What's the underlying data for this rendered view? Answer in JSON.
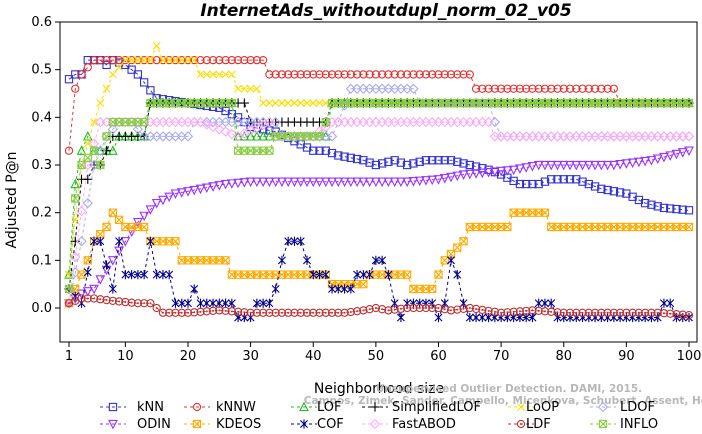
{
  "chart_data": {
    "type": "line",
    "title": "InternetAds_withoutdupl_norm_02_v05",
    "xlabel": "Neighborhood size",
    "ylabel": "Adjusted P@n",
    "xlim": [
      1,
      100
    ],
    "ylim": [
      -0.03,
      0.6
    ],
    "x_ticks": [
      1,
      10,
      20,
      30,
      40,
      50,
      60,
      70,
      80,
      90,
      100
    ],
    "y_ticks": [
      0.0,
      0.1,
      0.2,
      0.3,
      0.4,
      0.5,
      0.6
    ],
    "x_tick_labels": [
      "1",
      "10",
      "20",
      "30",
      "40",
      "50",
      "60",
      "70",
      "80",
      "90",
      "100"
    ],
    "y_tick_labels": [
      "0.0",
      "0.1",
      "0.2",
      "0.3",
      "0.4",
      "0.5",
      "0.6"
    ],
    "grid": false,
    "legend_position": "bottom",
    "series": [
      {
        "name": "kNN",
        "color": "#3333cc",
        "marker": "square",
        "dash": "3,3",
        "points": [
          [
            1,
            0.48
          ],
          [
            2,
            0.49
          ],
          [
            3,
            0.49
          ],
          [
            4,
            0.52
          ],
          [
            6,
            0.52
          ],
          [
            7,
            0.51
          ],
          [
            8,
            0.52
          ],
          [
            10,
            0.51
          ],
          [
            12,
            0.49
          ],
          [
            15,
            0.44
          ],
          [
            20,
            0.43
          ],
          [
            25,
            0.42
          ],
          [
            28,
            0.4
          ],
          [
            30,
            0.38
          ],
          [
            34,
            0.37
          ],
          [
            37,
            0.35
          ],
          [
            40,
            0.33
          ],
          [
            42,
            0.33
          ],
          [
            44,
            0.32
          ],
          [
            48,
            0.31
          ],
          [
            50,
            0.3
          ],
          [
            53,
            0.31
          ],
          [
            55,
            0.3
          ],
          [
            58,
            0.31
          ],
          [
            62,
            0.31
          ],
          [
            65,
            0.3
          ],
          [
            68,
            0.29
          ],
          [
            70,
            0.28
          ],
          [
            73,
            0.26
          ],
          [
            76,
            0.26
          ],
          [
            78,
            0.27
          ],
          [
            82,
            0.27
          ],
          [
            84,
            0.26
          ],
          [
            86,
            0.25
          ],
          [
            90,
            0.24
          ],
          [
            93,
            0.22
          ],
          [
            96,
            0.21
          ],
          [
            100,
            0.205
          ]
        ]
      },
      {
        "name": "kNNW",
        "color": "#dd3333",
        "marker": "circle",
        "dash": "3,3",
        "points": [
          [
            1,
            0.33
          ],
          [
            2,
            0.46
          ],
          [
            3,
            0.49
          ],
          [
            5,
            0.52
          ],
          [
            10,
            0.52
          ],
          [
            20,
            0.52
          ],
          [
            30,
            0.52
          ],
          [
            32,
            0.52
          ],
          [
            33,
            0.49
          ],
          [
            40,
            0.49
          ],
          [
            50,
            0.49
          ],
          [
            60,
            0.49
          ],
          [
            65,
            0.49
          ],
          [
            66,
            0.46
          ],
          [
            80,
            0.46
          ],
          [
            88,
            0.46
          ],
          [
            89,
            0.43
          ],
          [
            100,
            0.43
          ]
        ]
      },
      {
        "name": "LOF",
        "color": "#22bb22",
        "marker": "triangle",
        "dash": "3,3",
        "points": [
          [
            1,
            0.07
          ],
          [
            2,
            0.26
          ],
          [
            3,
            0.33
          ],
          [
            4,
            0.36
          ],
          [
            5,
            0.33
          ],
          [
            8,
            0.33
          ],
          [
            9,
            0.36
          ],
          [
            13,
            0.36
          ],
          [
            14,
            0.43
          ],
          [
            27,
            0.43
          ],
          [
            28,
            0.36
          ],
          [
            42,
            0.36
          ],
          [
            43,
            0.43
          ],
          [
            100,
            0.43
          ]
        ]
      },
      {
        "name": "SimplifiedLOF",
        "color": "#000000",
        "marker": "plus",
        "dash": "3,3",
        "points": [
          [
            1,
            0.04
          ],
          [
            2,
            0.14
          ],
          [
            3,
            0.27
          ],
          [
            4,
            0.27
          ],
          [
            5,
            0.3
          ],
          [
            6,
            0.3
          ],
          [
            8,
            0.36
          ],
          [
            13,
            0.36
          ],
          [
            14,
            0.43
          ],
          [
            29,
            0.43
          ],
          [
            30,
            0.39
          ],
          [
            42,
            0.39
          ],
          [
            43,
            0.43
          ],
          [
            100,
            0.43
          ]
        ]
      },
      {
        "name": "LoOP",
        "color": "#ffdd00",
        "marker": "cross",
        "dash": "3,3",
        "points": [
          [
            1,
            0.07
          ],
          [
            3,
            0.3
          ],
          [
            5,
            0.39
          ],
          [
            6,
            0.43
          ],
          [
            8,
            0.49
          ],
          [
            10,
            0.52
          ],
          [
            14,
            0.52
          ],
          [
            15,
            0.55
          ],
          [
            16,
            0.52
          ],
          [
            21,
            0.52
          ],
          [
            22,
            0.49
          ],
          [
            27,
            0.49
          ],
          [
            28,
            0.46
          ],
          [
            31,
            0.46
          ],
          [
            32,
            0.43
          ],
          [
            100,
            0.43
          ]
        ]
      },
      {
        "name": "LDOF",
        "color": "#aaaaee",
        "marker": "diamond",
        "dash": "3,3",
        "points": [
          [
            1,
            0.01
          ],
          [
            3,
            0.14
          ],
          [
            5,
            0.3
          ],
          [
            7,
            0.36
          ],
          [
            9,
            0.39
          ],
          [
            11,
            0.39
          ],
          [
            13,
            0.36
          ],
          [
            20,
            0.36
          ],
          [
            21,
            0.39
          ],
          [
            34,
            0.39
          ],
          [
            35,
            0.36
          ],
          [
            43,
            0.36
          ],
          [
            44,
            0.39
          ],
          [
            46,
            0.46
          ],
          [
            56,
            0.46
          ],
          [
            57,
            0.43
          ],
          [
            68,
            0.43
          ],
          [
            69,
            0.39
          ],
          [
            70,
            0.36
          ],
          [
            100,
            0.36
          ]
        ]
      },
      {
        "name": "ODIN",
        "color": "#9933ff",
        "marker": "triangle-down",
        "dash": "3,3",
        "points": [
          [
            1,
            0.01
          ],
          [
            3,
            0.03
          ],
          [
            5,
            0.04
          ],
          [
            8,
            0.1
          ],
          [
            10,
            0.14
          ],
          [
            12,
            0.18
          ],
          [
            15,
            0.22
          ],
          [
            18,
            0.24
          ],
          [
            22,
            0.25
          ],
          [
            26,
            0.26
          ],
          [
            30,
            0.265
          ],
          [
            40,
            0.265
          ],
          [
            50,
            0.265
          ],
          [
            55,
            0.265
          ],
          [
            60,
            0.27
          ],
          [
            64,
            0.28
          ],
          [
            68,
            0.285
          ],
          [
            72,
            0.29
          ],
          [
            76,
            0.3
          ],
          [
            88,
            0.3
          ],
          [
            94,
            0.31
          ],
          [
            97,
            0.32
          ],
          [
            100,
            0.33
          ]
        ]
      },
      {
        "name": "KDEOS",
        "color": "#ffaa00",
        "marker": "square-x",
        "dash": "3,3",
        "points": [
          [
            1,
            0.01
          ],
          [
            3,
            0.07
          ],
          [
            4,
            0.1
          ],
          [
            5,
            0.14
          ],
          [
            7,
            0.17
          ],
          [
            8,
            0.2
          ],
          [
            10,
            0.17
          ],
          [
            13,
            0.17
          ],
          [
            14,
            0.14
          ],
          [
            18,
            0.14
          ],
          [
            19,
            0.1
          ],
          [
            26,
            0.1
          ],
          [
            27,
            0.07
          ],
          [
            42,
            0.07
          ],
          [
            43,
            0.05
          ],
          [
            48,
            0.05
          ],
          [
            49,
            0.07
          ],
          [
            55,
            0.07
          ],
          [
            56,
            0.04
          ],
          [
            59,
            0.04
          ],
          [
            60,
            0.07
          ],
          [
            61,
            0.1
          ],
          [
            64,
            0.14
          ],
          [
            65,
            0.17
          ],
          [
            71,
            0.17
          ],
          [
            72,
            0.2
          ],
          [
            77,
            0.2
          ],
          [
            78,
            0.17
          ],
          [
            100,
            0.17
          ]
        ]
      },
      {
        "name": "COF",
        "color": "#000088",
        "marker": "asterisk",
        "dash": "3,3",
        "points": [
          [
            1,
            0.04
          ],
          [
            3,
            0.01
          ],
          [
            5,
            0.14
          ],
          [
            6,
            0.14
          ],
          [
            8,
            0.04
          ],
          [
            9,
            0.14
          ],
          [
            10,
            0.07
          ],
          [
            13,
            0.07
          ],
          [
            14,
            0.14
          ],
          [
            15,
            0.07
          ],
          [
            17,
            0.07
          ],
          [
            18,
            0.01
          ],
          [
            20,
            0.01
          ],
          [
            21,
            0.04
          ],
          [
            22,
            0.01
          ],
          [
            27,
            0.01
          ],
          [
            28,
            -0.02
          ],
          [
            30,
            -0.02
          ],
          [
            31,
            0.01
          ],
          [
            33,
            0.01
          ],
          [
            34,
            0.04
          ],
          [
            35,
            0.1
          ],
          [
            36,
            0.14
          ],
          [
            38,
            0.14
          ],
          [
            39,
            0.1
          ],
          [
            40,
            0.07
          ],
          [
            42,
            0.07
          ],
          [
            43,
            0.04
          ],
          [
            46,
            0.04
          ],
          [
            47,
            0.07
          ],
          [
            49,
            0.07
          ],
          [
            50,
            0.1
          ],
          [
            51,
            0.1
          ],
          [
            52,
            0.07
          ],
          [
            53,
            0.01
          ],
          [
            54,
            -0.02
          ],
          [
            55,
            0.01
          ],
          [
            59,
            0.01
          ],
          [
            60,
            -0.02
          ],
          [
            61,
            0.01
          ],
          [
            62,
            0.1
          ],
          [
            63,
            0.07
          ],
          [
            64,
            0.01
          ],
          [
            65,
            -0.02
          ],
          [
            75,
            -0.02
          ],
          [
            76,
            0.01
          ],
          [
            78,
            0.01
          ],
          [
            79,
            -0.02
          ],
          [
            95,
            -0.02
          ],
          [
            96,
            0.01
          ],
          [
            97,
            0.01
          ],
          [
            98,
            -0.02
          ],
          [
            100,
            -0.02
          ]
        ]
      },
      {
        "name": "FastABOD",
        "color": "#ffaaff",
        "marker": "diamond",
        "dash": "3,3",
        "points": [
          [
            1,
            0.01
          ],
          [
            4,
            0.3
          ],
          [
            6,
            0.39
          ],
          [
            8,
            0.39
          ],
          [
            10,
            0.39
          ],
          [
            12,
            0.39
          ],
          [
            15,
            0.39
          ],
          [
            22,
            0.39
          ],
          [
            28,
            0.36
          ],
          [
            33,
            0.39
          ],
          [
            34,
            0.36
          ],
          [
            40,
            0.36
          ],
          [
            43,
            0.39
          ],
          [
            58,
            0.39
          ],
          [
            68,
            0.39
          ],
          [
            69,
            0.36
          ],
          [
            100,
            0.36
          ]
        ]
      },
      {
        "name": "LDF",
        "color": "#bb3333",
        "marker": "circle-dot",
        "dash": "3,3",
        "points": [
          [
            1,
            0.01
          ],
          [
            3,
            0.02
          ],
          [
            5,
            0.02
          ],
          [
            8,
            0.015
          ],
          [
            12,
            0.01
          ],
          [
            14,
            0.01
          ],
          [
            16,
            -0.01
          ],
          [
            20,
            -0.01
          ],
          [
            25,
            -0.005
          ],
          [
            30,
            -0.01
          ],
          [
            35,
            -0.01
          ],
          [
            40,
            -0.01
          ],
          [
            45,
            -0.01
          ],
          [
            48,
            -0.005
          ],
          [
            50,
            0.0
          ],
          [
            52,
            -0.005
          ],
          [
            55,
            0.0
          ],
          [
            57,
            0.0
          ],
          [
            60,
            0.0
          ],
          [
            62,
            -0.005
          ],
          [
            65,
            0.0
          ],
          [
            70,
            -0.01
          ],
          [
            75,
            -0.005
          ],
          [
            80,
            -0.01
          ],
          [
            85,
            -0.01
          ],
          [
            90,
            -0.01
          ],
          [
            95,
            -0.01
          ],
          [
            100,
            -0.015
          ]
        ]
      },
      {
        "name": "INFLO",
        "color": "#88cc44",
        "marker": "square-x",
        "dash": "3,3",
        "points": [
          [
            1,
            0.04
          ],
          [
            2,
            0.23
          ],
          [
            3,
            0.3
          ],
          [
            5,
            0.33
          ],
          [
            6,
            0.3
          ],
          [
            7,
            0.36
          ],
          [
            8,
            0.39
          ],
          [
            13,
            0.39
          ],
          [
            14,
            0.43
          ],
          [
            27,
            0.43
          ],
          [
            28,
            0.33
          ],
          [
            33,
            0.33
          ],
          [
            34,
            0.36
          ],
          [
            41,
            0.36
          ],
          [
            42,
            0.39
          ],
          [
            43,
            0.43
          ],
          [
            100,
            0.43
          ]
        ]
      }
    ]
  },
  "watermark": {
    "line1": "Unsupervised Outlier Detection. DAMI, 2015.",
    "line2": "Campos, Zimek, Sander, Campello, Micenkova, Schubert, Assent, Houle"
  }
}
